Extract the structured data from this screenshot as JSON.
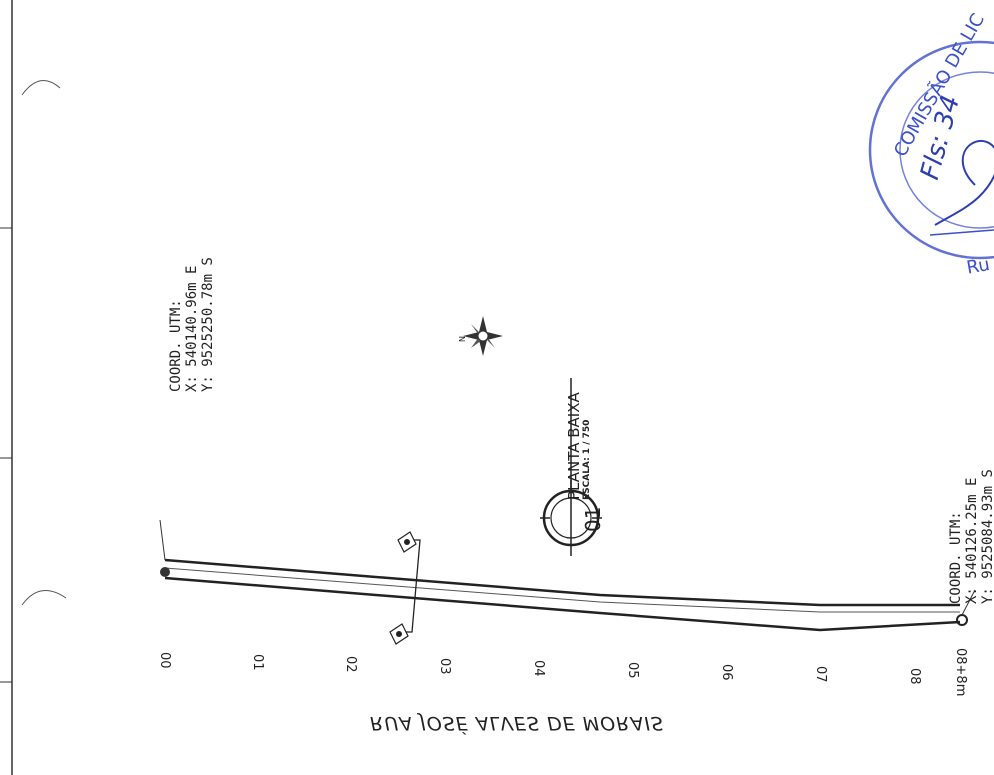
{
  "drawing": {
    "street_name": "RUA JOSÉ ALVES DE MORAIS",
    "plan": {
      "number": "01",
      "title": "PLANTA BAIXA",
      "scale": "ESCALA: 1 / 750"
    },
    "north_label": "N",
    "coord_start": {
      "heading": "COORD. UTM:",
      "x": "X: 540140.96m E",
      "y": "Y: 9525250.78m S"
    },
    "coord_end": {
      "heading": "COORD. UTM:",
      "x": "X: 540126.25m E",
      "y": "Y: 9525084.93m S"
    },
    "stations": [
      "00",
      "01",
      "02",
      "03",
      "04",
      "05",
      "06",
      "07",
      "08",
      "08+8m"
    ],
    "stamp": {
      "line1": "COMISSÃO DE LIC",
      "line2": "Fls: 34",
      "line3": "Ru"
    },
    "colors": {
      "line": "#2a2a2a",
      "stamp": "#3a4fc9"
    }
  }
}
